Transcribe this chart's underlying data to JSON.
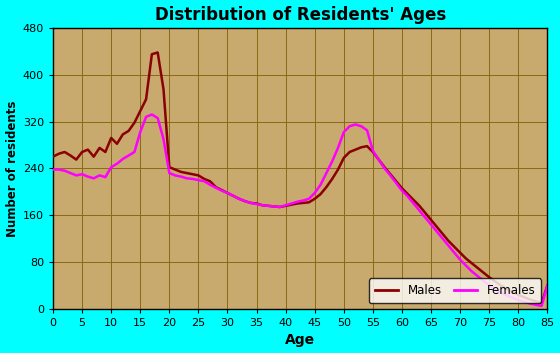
{
  "title": "Distribution of Residents' Ages",
  "xlabel": "Age",
  "ylabel": "Number of residents",
  "background_color": "#00FFFF",
  "plot_bg_color": "#C8A96E",
  "grid_color": "#8B6914",
  "ylim": [
    0,
    480
  ],
  "xlim": [
    0,
    85
  ],
  "yticks": [
    0,
    80,
    160,
    240,
    320,
    400,
    480
  ],
  "xticks": [
    0,
    5,
    10,
    15,
    20,
    25,
    30,
    35,
    40,
    45,
    50,
    55,
    60,
    65,
    70,
    75,
    80,
    85
  ],
  "males_color": "#8B0000",
  "females_color": "#FF00FF",
  "males_ages": [
    0,
    1,
    2,
    3,
    4,
    5,
    6,
    7,
    8,
    9,
    10,
    11,
    12,
    13,
    14,
    15,
    16,
    17,
    18,
    19,
    20,
    21,
    22,
    23,
    24,
    25,
    26,
    27,
    28,
    29,
    30,
    31,
    32,
    33,
    34,
    35,
    36,
    37,
    38,
    39,
    40,
    41,
    42,
    43,
    44,
    45,
    46,
    47,
    48,
    49,
    50,
    51,
    52,
    53,
    54,
    55,
    56,
    57,
    58,
    59,
    60,
    61,
    62,
    63,
    64,
    65,
    66,
    67,
    68,
    69,
    70,
    71,
    72,
    73,
    74,
    75,
    76,
    77,
    78,
    79,
    80,
    81,
    82,
    83,
    84,
    85
  ],
  "males_values": [
    260,
    265,
    268,
    262,
    255,
    268,
    272,
    260,
    275,
    268,
    292,
    282,
    298,
    304,
    318,
    338,
    358,
    435,
    438,
    375,
    242,
    238,
    234,
    232,
    230,
    228,
    222,
    218,
    208,
    203,
    198,
    193,
    188,
    184,
    181,
    180,
    177,
    176,
    175,
    174,
    176,
    178,
    180,
    181,
    182,
    188,
    196,
    208,
    222,
    238,
    258,
    268,
    272,
    276,
    278,
    268,
    255,
    242,
    230,
    218,
    206,
    196,
    186,
    176,
    164,
    152,
    140,
    128,
    116,
    106,
    96,
    86,
    78,
    70,
    62,
    54,
    47,
    40,
    34,
    29,
    24,
    20,
    16,
    13,
    10,
    40
  ],
  "females_ages": [
    0,
    1,
    2,
    3,
    4,
    5,
    6,
    7,
    8,
    9,
    10,
    11,
    12,
    13,
    14,
    15,
    16,
    17,
    18,
    19,
    20,
    21,
    22,
    23,
    24,
    25,
    26,
    27,
    28,
    29,
    30,
    31,
    32,
    33,
    34,
    35,
    36,
    37,
    38,
    39,
    40,
    41,
    42,
    43,
    44,
    45,
    46,
    47,
    48,
    49,
    50,
    51,
    52,
    53,
    54,
    55,
    56,
    57,
    58,
    59,
    60,
    61,
    62,
    63,
    64,
    65,
    66,
    67,
    68,
    69,
    70,
    71,
    72,
    73,
    74,
    75,
    76,
    77,
    78,
    79,
    80,
    81,
    82,
    83,
    84,
    85
  ],
  "females_values": [
    238,
    238,
    236,
    232,
    228,
    230,
    226,
    223,
    228,
    225,
    242,
    248,
    256,
    262,
    268,
    302,
    328,
    332,
    326,
    290,
    232,
    228,
    226,
    223,
    222,
    220,
    218,
    212,
    207,
    202,
    198,
    193,
    188,
    184,
    181,
    179,
    177,
    176,
    175,
    174,
    177,
    180,
    183,
    185,
    188,
    198,
    212,
    232,
    252,
    275,
    302,
    312,
    315,
    312,
    305,
    270,
    255,
    240,
    228,
    215,
    202,
    192,
    180,
    168,
    156,
    144,
    132,
    120,
    108,
    96,
    84,
    74,
    64,
    56,
    48,
    40,
    34,
    28,
    23,
    19,
    15,
    12,
    9,
    7,
    5,
    40
  ]
}
